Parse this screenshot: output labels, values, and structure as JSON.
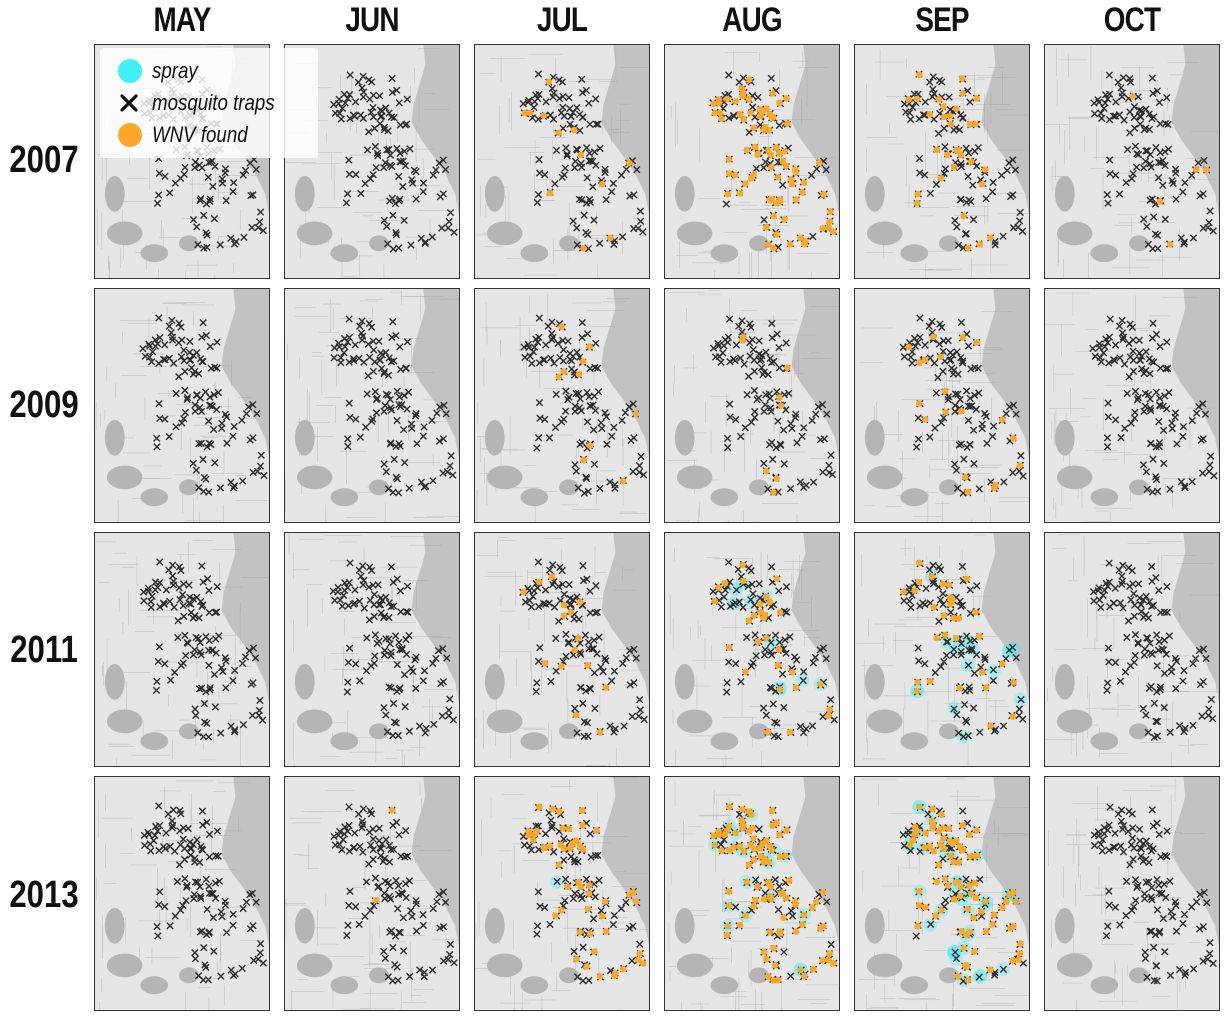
{
  "months": [
    "MAY",
    "JUN",
    "JUL",
    "AUG",
    "SEP",
    "OCT"
  ],
  "years": [
    "2007",
    "2009",
    "2011",
    "2013"
  ],
  "legend": {
    "items": [
      {
        "label": "spray",
        "symbol": "cyan-circle"
      },
      {
        "label": "mosquito traps",
        "symbol": "x-mark"
      },
      {
        "label": "WNV found",
        "symbol": "orange-circle"
      }
    ]
  },
  "colors": {
    "spray": "#3ff0f7",
    "trap": "#2b2b2b",
    "wnv": "#ffa826",
    "water": "#c2c2c2",
    "land": "#e6e6e6"
  },
  "map_data": {
    "wnv_intensity": [
      [
        0,
        0,
        0.06,
        0.65,
        0.3,
        0.04
      ],
      [
        0,
        0,
        0.1,
        0.09,
        0.12,
        0
      ],
      [
        0,
        0,
        0.14,
        0.22,
        0.3,
        0
      ],
      [
        0,
        0.01,
        0.45,
        0.7,
        0.6,
        0
      ]
    ],
    "spray_intensity": [
      [
        0,
        0,
        0,
        0,
        0,
        0
      ],
      [
        0,
        0,
        0,
        0,
        0,
        0
      ],
      [
        0,
        0,
        0,
        0.25,
        0.4,
        0
      ],
      [
        0,
        0,
        0.03,
        0.45,
        0.9,
        0
      ]
    ]
  }
}
